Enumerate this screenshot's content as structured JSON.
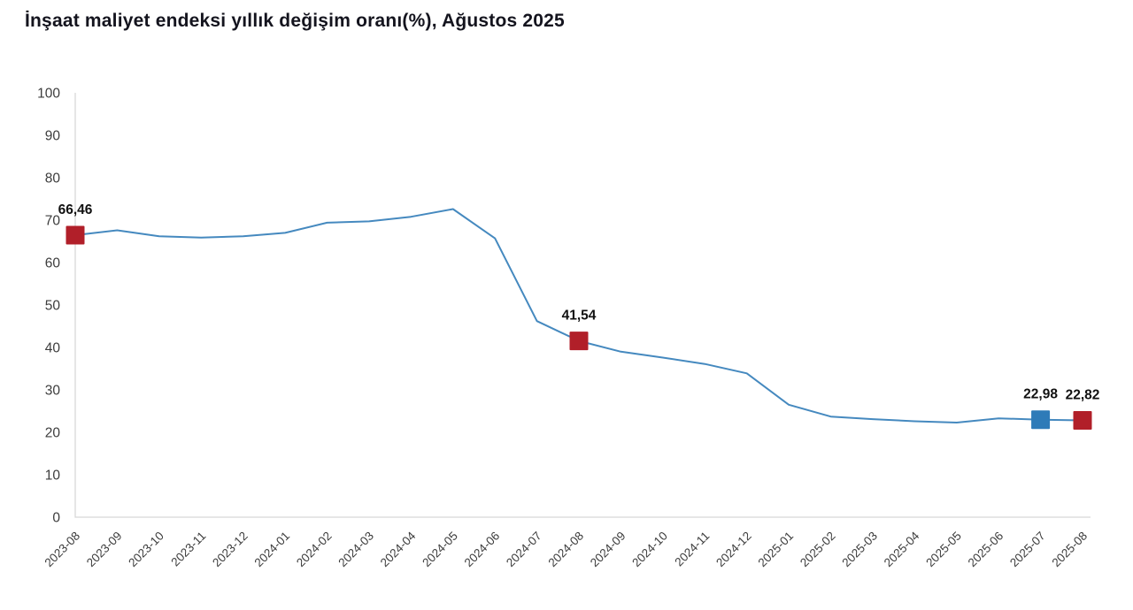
{
  "title": "İnşaat maliyet endeksi yıllık değişim oranı(%), Ağustos 2025",
  "chart_data": {
    "type": "line",
    "title": "İnşaat maliyet endeksi yıllık değişim oranı(%), Ağustos 2025",
    "x": [
      "2023-08",
      "2023-09",
      "2023-10",
      "2023-11",
      "2023-12",
      "2024-01",
      "2024-02",
      "2024-03",
      "2024-04",
      "2024-05",
      "2024-06",
      "2024-07",
      "2024-08",
      "2024-09",
      "2024-10",
      "2024-11",
      "2024-12",
      "2025-01",
      "2025-02",
      "2025-03",
      "2025-04",
      "2025-05",
      "2025-06",
      "2025-07",
      "2025-08"
    ],
    "values": [
      66.46,
      67.6,
      66.2,
      65.9,
      66.2,
      67.0,
      69.4,
      69.7,
      70.8,
      72.6,
      65.7,
      46.2,
      41.54,
      39.0,
      37.6,
      36.1,
      33.9,
      26.5,
      23.7,
      23.1,
      22.6,
      22.3,
      23.3,
      22.98,
      22.82
    ],
    "ylim": [
      0,
      100
    ],
    "ytick_step": 10,
    "grid": false,
    "legend": false,
    "line_color": "#4589bf",
    "axis_color": "#d8d8d8",
    "tick_label_color": "#3c3c3c",
    "data_label_color": "#111111",
    "annotations": [
      {
        "x": "2023-08",
        "index": 0,
        "label": "66,46",
        "marker_color": "#b11f29"
      },
      {
        "x": "2024-08",
        "index": 12,
        "label": "41,54",
        "marker_color": "#b11f29"
      },
      {
        "x": "2025-07",
        "index": 23,
        "label": "22,98",
        "marker_color": "#2e7bb8"
      },
      {
        "x": "2025-08",
        "index": 24,
        "label": "22,82",
        "marker_color": "#b11f29"
      }
    ]
  }
}
